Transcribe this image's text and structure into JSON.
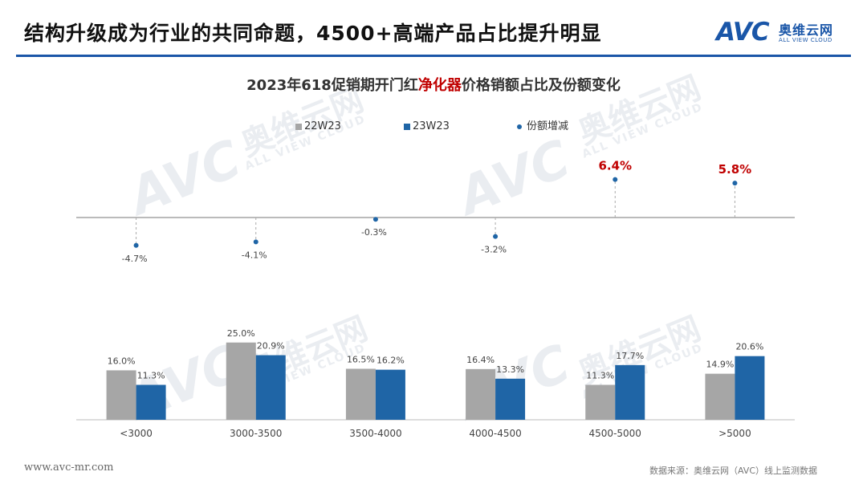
{
  "header": {
    "title": "结构升级成为行业的共同命题，4500+高端产品占比提升明显",
    "logo_mark": "AVC",
    "logo_cn": "奥维云网",
    "logo_en": "ALL VIEW CLOUD",
    "brand_color": "#1a56a8"
  },
  "watermark": {
    "mark": "AVC",
    "cn": "奥维云网",
    "en": "ALL VIEW CLOUD"
  },
  "footer": {
    "url": "www.avc-mr.com",
    "source": "数据来源：奥维云网（AVC）线上监测数据"
  },
  "chart_data": {
    "type": "bar",
    "title_prefix": "2023年618促销期开门红",
    "title_highlight": "净化器",
    "title_suffix": "价格销额占比及份额变化",
    "categories": [
      "<3000",
      "3000-3500",
      "3500-4000",
      "4000-4500",
      "4500-5000",
      ">5000"
    ],
    "series": [
      {
        "name": "22W23",
        "color": "#a6a6a6",
        "values": [
          16.0,
          25.0,
          16.5,
          16.4,
          11.3,
          14.9
        ],
        "labels": [
          "16.0%",
          "25.0%",
          "16.5%",
          "16.4%",
          "11.3%",
          "14.9%"
        ]
      },
      {
        "name": "23W23",
        "color": "#1f65a6",
        "values": [
          11.3,
          20.9,
          16.2,
          13.3,
          17.7,
          20.6
        ],
        "labels": [
          "11.3%",
          "20.9%",
          "16.2%",
          "13.3%",
          "17.7%",
          "20.6%"
        ]
      }
    ],
    "change_series": {
      "name": "份额增减",
      "color": "#1f65a6",
      "highlight_color": "#c00000",
      "values": [
        -4.7,
        -4.1,
        -0.3,
        -3.2,
        6.4,
        5.8
      ],
      "labels": [
        "-4.7%",
        "-4.1%",
        "-0.3%",
        "-3.2%",
        "6.4%",
        "5.8%"
      ]
    },
    "legend_position": "top",
    "grid": false
  }
}
